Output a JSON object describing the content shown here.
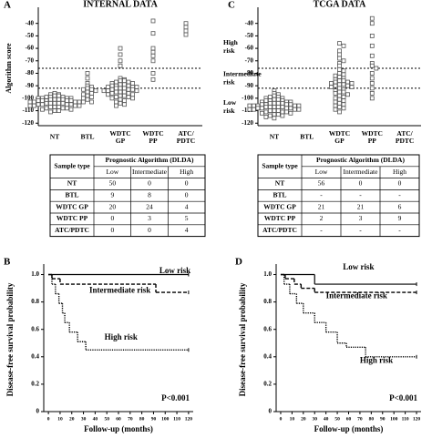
{
  "chart_data": [
    {
      "type": "strip",
      "panel": "A",
      "title": "INTERNAL DATA",
      "ylabel": "Algorithm score",
      "categories": [
        "NT",
        "BTL",
        "WDTC GP",
        "WDTC PP",
        "ATC/ PDTC"
      ],
      "values": [
        [
          -96,
          -97,
          -97,
          -98,
          -98,
          -99,
          -99,
          -99,
          -100,
          -100,
          -100,
          -100,
          -101,
          -101,
          -101,
          -101,
          -102,
          -102,
          -102,
          -102,
          -102,
          -103,
          -103,
          -103,
          -103,
          -103,
          -104,
          -104,
          -104,
          -104,
          -104,
          -105,
          -105,
          -105,
          -105,
          -106,
          -106,
          -106,
          -106,
          -107,
          -107,
          -107,
          -108,
          -108,
          -108,
          -109,
          -109,
          -110,
          -110,
          -111
        ],
        [
          -80,
          -84,
          -88,
          -90,
          -91,
          -92,
          -93,
          -93,
          -94,
          -95,
          -96,
          -97,
          -98,
          -99,
          -100,
          -101,
          -103
        ],
        [
          -60,
          -65,
          -70,
          -74,
          -84,
          -85,
          -86,
          -86,
          -87,
          -87,
          -88,
          -88,
          -89,
          -89,
          -90,
          -90,
          -90,
          -91,
          -91,
          -91,
          -92,
          -92,
          -92,
          -93,
          -93,
          -93,
          -94,
          -94,
          -94,
          -95,
          -95,
          -95,
          -96,
          -96,
          -97,
          -97,
          -98,
          -98,
          -99,
          -99,
          -100,
          -100,
          -101,
          -102,
          -103,
          -104,
          -105,
          -106
        ],
        [
          -38,
          -48,
          -60,
          -63,
          -66,
          -70,
          -80,
          -85
        ],
        [
          -40,
          -43,
          -46,
          -49
        ]
      ],
      "color": "#555555",
      "thresholds": [
        -76,
        -92
      ],
      "ylim": [
        -122,
        -30
      ],
      "yticks": [
        -40,
        -50,
        -60,
        -70,
        -80,
        -90,
        -100,
        -110,
        -120
      ]
    },
    {
      "type": "strip",
      "panel": "C",
      "title": "TCGA DATA",
      "categories": [
        "NT",
        "BTL",
        "WDTC GP",
        "WDTC PP",
        "ATC/ PDTC"
      ],
      "values": [
        [
          -94,
          -96,
          -97,
          -98,
          -99,
          -99,
          -100,
          -100,
          -101,
          -101,
          -102,
          -102,
          -102,
          -103,
          -103,
          -103,
          -104,
          -104,
          -104,
          -104,
          -105,
          -105,
          -105,
          -105,
          -106,
          -106,
          -106,
          -106,
          -106,
          -107,
          -107,
          -107,
          -107,
          -107,
          -108,
          -108,
          -108,
          -108,
          -109,
          -109,
          -109,
          -109,
          -110,
          -110,
          -110,
          -111,
          -111,
          -111,
          -112,
          -112,
          -113,
          -113,
          -114,
          -114,
          -115,
          -116
        ],
        [],
        [
          -56,
          -58,
          -62,
          -65,
          -68,
          -70,
          -72,
          -74,
          -77,
          -78,
          -80,
          -81,
          -82,
          -83,
          -84,
          -85,
          -86,
          -86,
          -87,
          -87,
          -88,
          -88,
          -89,
          -89,
          -90,
          -90,
          -91,
          -91,
          -92,
          -93,
          -94,
          -95,
          -95,
          -96,
          -97,
          -98,
          -99,
          -100,
          -101,
          -102,
          -103,
          -104,
          -105,
          -106,
          -107,
          -108,
          -109,
          -111
        ],
        [
          -36,
          -40,
          -50,
          -58,
          -66,
          -72,
          -74,
          -76,
          -80,
          -84,
          -88,
          -92,
          -96,
          -100
        ],
        []
      ],
      "color": "#555555",
      "thresholds": [
        -76,
        -92
      ],
      "annotations": [
        "High risk",
        "Intermediate risk",
        "Low risk"
      ],
      "ylim": [
        -122,
        -30
      ],
      "yticks": [
        -40,
        -50,
        -60,
        -70,
        -80,
        -90,
        -100,
        -110,
        -120
      ]
    },
    {
      "type": "km",
      "panel": "B",
      "xlabel": "Follow-up (months)",
      "ylabel": "Disease-free survival probability",
      "annotation": "P<0.001",
      "series": [
        {
          "name": "Low risk",
          "dash": "solid",
          "x": [
            0,
            120
          ],
          "values": [
            1,
            1
          ]
        },
        {
          "name": "Intermediate risk",
          "dash": "dashed",
          "x": [
            0,
            3,
            10,
            92,
            120
          ],
          "values": [
            1,
            0.97,
            0.93,
            0.87,
            0.87
          ]
        },
        {
          "name": "High risk",
          "dash": "dotted",
          "x": [
            0,
            3,
            6,
            9,
            12,
            14,
            18,
            25,
            32,
            120
          ],
          "values": [
            1,
            0.93,
            0.86,
            0.79,
            0.72,
            0.65,
            0.58,
            0.51,
            0.45,
            0.45
          ]
        }
      ],
      "xlim": [
        -4,
        124
      ],
      "xticks": [
        0,
        10,
        20,
        30,
        40,
        50,
        60,
        70,
        80,
        90,
        100,
        110,
        120
      ],
      "ylim": [
        0,
        1.05
      ],
      "yticks": [
        0,
        0.2,
        0.4,
        0.6,
        0.8,
        {
          "value": 1,
          "label": "1.0"
        }
      ]
    },
    {
      "type": "km",
      "panel": "D",
      "xlabel": "Follow-up (months)",
      "ylabel": "Disease-free survival probability",
      "annotation": "P<0.001",
      "series": [
        {
          "name": "Low risk",
          "dash": "solid",
          "x": [
            0,
            30,
            120
          ],
          "values": [
            1,
            0.93,
            0.93
          ]
        },
        {
          "name": "Intermediate risk",
          "dash": "dashed",
          "x": [
            0,
            4,
            12,
            18,
            30,
            120
          ],
          "values": [
            1,
            0.97,
            0.93,
            0.9,
            0.87,
            0.87
          ]
        },
        {
          "name": "High risk",
          "dash": "dotted",
          "x": [
            0,
            3,
            8,
            14,
            20,
            30,
            40,
            50,
            58,
            75,
            120
          ],
          "values": [
            1,
            0.93,
            0.86,
            0.79,
            0.72,
            0.65,
            0.58,
            0.5,
            0.47,
            0.4,
            0.4
          ]
        }
      ],
      "xlim": [
        -4,
        124
      ],
      "xticks": [
        0,
        10,
        20,
        30,
        40,
        50,
        60,
        70,
        80,
        90,
        100,
        110,
        120
      ],
      "ylim": [
        0,
        1.05
      ],
      "yticks": [
        0,
        0.2,
        0.4,
        0.6,
        0.8,
        {
          "value": 1,
          "label": "1.0"
        }
      ]
    }
  ],
  "tables": [
    {
      "header": [
        "Sample type",
        "Prognostic Algorithm (DLDA)"
      ],
      "subheader": [
        "Low",
        "Intermediate",
        "High"
      ],
      "rows": [
        [
          "NT",
          50,
          0,
          0
        ],
        [
          "BTL",
          9,
          8,
          0
        ],
        [
          "WDTC GP",
          20,
          24,
          4
        ],
        [
          "WDTC PP",
          0,
          3,
          5
        ],
        [
          "ATC/PDTC",
          0,
          0,
          4
        ]
      ]
    },
    {
      "header": [
        "Sample type",
        "Prognostic Algorithm (DLDA)"
      ],
      "subheader": [
        "Low",
        "Intermediate",
        "High"
      ],
      "rows": [
        [
          "NT",
          56,
          0,
          0
        ],
        [
          "BTL",
          "-",
          "-",
          "-"
        ],
        [
          "WDTC GP",
          21,
          21,
          6
        ],
        [
          "WDTC PP",
          2,
          3,
          9
        ],
        [
          "ATC/PDTC",
          "-",
          "-",
          "-"
        ]
      ]
    }
  ]
}
